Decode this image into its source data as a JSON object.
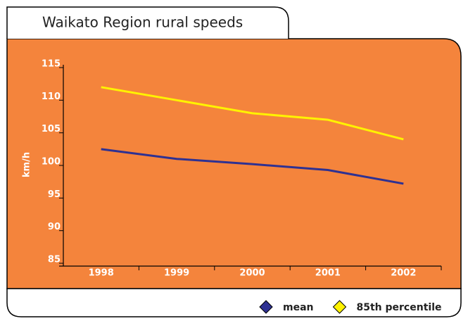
{
  "chart_data": {
    "type": "line",
    "title": "Waikato Region rural speeds",
    "y_label": "km/h",
    "categories": [
      "1998",
      "1999",
      "2000",
      "2001",
      "2002"
    ],
    "series": [
      {
        "name": "mean",
        "color": "#2e3192",
        "values": [
          102.5,
          101,
          100.2,
          99.3,
          97.2
        ]
      },
      {
        "name": "85th percentile",
        "color": "#fff200",
        "values": [
          112,
          110,
          108,
          107,
          104
        ]
      }
    ],
    "ylim": [
      85,
      115
    ],
    "yticks": [
      85,
      90,
      95,
      100,
      105,
      110,
      115
    ],
    "grid": false,
    "background": "#f4843c",
    "legend": "bottom-right"
  }
}
